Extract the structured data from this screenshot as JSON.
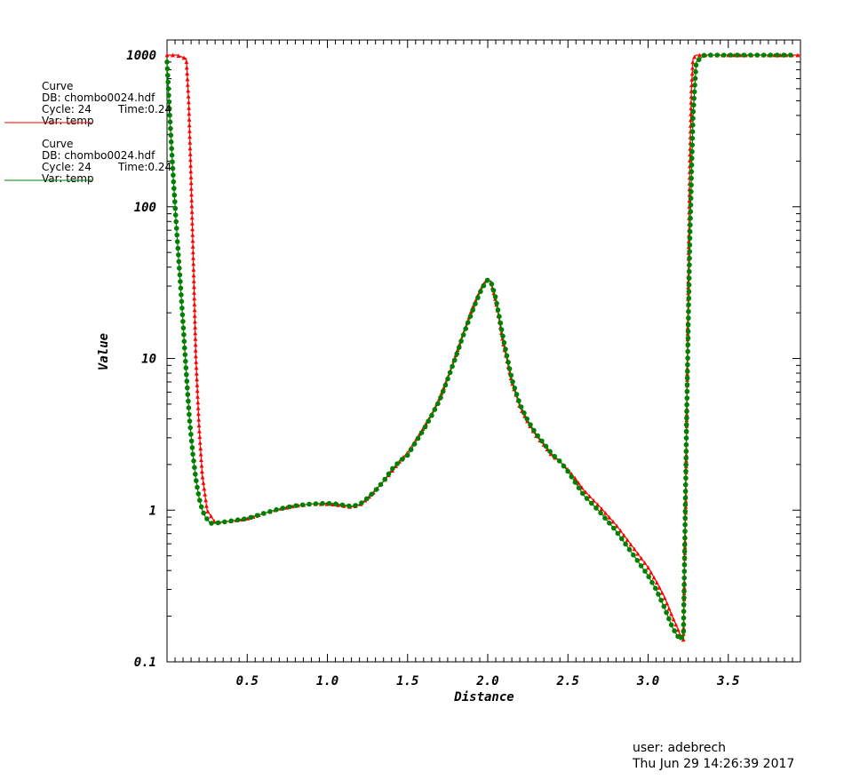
{
  "chart_data": {
    "type": "line",
    "xlabel": "Distance",
    "ylabel": "Value",
    "xlim": [
      0.0,
      3.95
    ],
    "ylim": [
      0.1,
      1000
    ],
    "yscale": "log",
    "x_ticks": [
      "0.5",
      "1.0",
      "1.5",
      "2.0",
      "2.5",
      "3.0",
      "3.5"
    ],
    "y_ticks": [
      "0.1",
      "1",
      "10",
      "100",
      "1000"
    ],
    "grid": false,
    "legend_position": "top-left",
    "series": [
      {
        "color": "#ff0000",
        "marker": "triangle",
        "legend": {
          "line1": "Curve",
          "line2": "DB: chombo0024.hdf",
          "line3_a": "Cycle: 24",
          "line3_b": "Time:0.24",
          "line4": "Var: temp"
        },
        "x": [
          0.0,
          0.06,
          0.12,
          0.135,
          0.15,
          0.165,
          0.18,
          0.2,
          0.22,
          0.25,
          0.3,
          0.4,
          0.5,
          0.6,
          0.7,
          0.8,
          0.9,
          1.0,
          1.05,
          1.1,
          1.15,
          1.2,
          1.25,
          1.3,
          1.35,
          1.4,
          1.45,
          1.5,
          1.55,
          1.6,
          1.65,
          1.7,
          1.75,
          1.8,
          1.85,
          1.9,
          1.95,
          1.98,
          2.0,
          2.02,
          2.05,
          2.1,
          2.15,
          2.2,
          2.25,
          2.3,
          2.35,
          2.4,
          2.45,
          2.5,
          2.55,
          2.6,
          2.7,
          2.8,
          2.9,
          3.0,
          3.05,
          3.1,
          3.15,
          3.18,
          3.2,
          3.22,
          3.235,
          3.25,
          3.26,
          3.27,
          3.28,
          3.3,
          3.4,
          3.6,
          3.8,
          3.95
        ],
        "y": [
          1000,
          1000,
          950,
          500,
          150,
          40,
          10,
          3.5,
          1.7,
          1.0,
          0.83,
          0.85,
          0.88,
          0.95,
          1.02,
          1.07,
          1.1,
          1.1,
          1.09,
          1.07,
          1.05,
          1.08,
          1.2,
          1.35,
          1.55,
          1.8,
          2.1,
          2.4,
          2.9,
          3.5,
          4.3,
          5.5,
          7.5,
          10.5,
          15,
          21,
          28,
          32,
          33,
          32,
          24,
          12,
          7,
          4.8,
          3.8,
          3.1,
          2.7,
          2.3,
          2.1,
          1.85,
          1.6,
          1.35,
          1.05,
          0.8,
          0.58,
          0.42,
          0.34,
          0.27,
          0.2,
          0.17,
          0.15,
          0.14,
          1.2,
          30,
          200,
          600,
          950,
          1000,
          1000,
          1000,
          1000,
          1000
        ]
      },
      {
        "color": "#008000",
        "marker": "circle",
        "legend": {
          "line1": "Curve",
          "line2": "DB: chombo0024.hdf",
          "line3_a": "Cycle: 24",
          "line3_b": "Time:0.24",
          "line4": "Var: temp"
        },
        "x": [
          0.0,
          0.02,
          0.04,
          0.06,
          0.08,
          0.1,
          0.12,
          0.14,
          0.16,
          0.18,
          0.2,
          0.22,
          0.24,
          0.27,
          0.3,
          0.4,
          0.5,
          0.6,
          0.7,
          0.8,
          0.9,
          1.0,
          1.05,
          1.1,
          1.15,
          1.2,
          1.25,
          1.3,
          1.35,
          1.4,
          1.45,
          1.5,
          1.55,
          1.6,
          1.65,
          1.7,
          1.75,
          1.8,
          1.85,
          1.9,
          1.95,
          1.98,
          2.0,
          2.02,
          2.05,
          2.1,
          2.15,
          2.2,
          2.25,
          2.3,
          2.35,
          2.4,
          2.45,
          2.5,
          2.55,
          2.6,
          2.7,
          2.8,
          2.9,
          3.0,
          3.05,
          3.1,
          3.15,
          3.18,
          3.2,
          3.22,
          3.24,
          3.26,
          3.28,
          3.3,
          3.35,
          3.4,
          3.5,
          3.6,
          3.7,
          3.8,
          3.9
        ],
        "y": [
          900,
          350,
          150,
          70,
          35,
          17,
          8,
          4,
          2.4,
          1.6,
          1.2,
          1.0,
          0.9,
          0.82,
          0.82,
          0.85,
          0.88,
          0.95,
          1.02,
          1.07,
          1.1,
          1.11,
          1.1,
          1.08,
          1.06,
          1.09,
          1.2,
          1.35,
          1.55,
          1.85,
          2.1,
          2.3,
          2.8,
          3.4,
          4.2,
          5.3,
          7.3,
          10.2,
          14.5,
          20,
          27,
          31,
          33,
          32,
          25,
          13,
          7.3,
          5.0,
          3.9,
          3.2,
          2.75,
          2.35,
          2.1,
          1.8,
          1.5,
          1.25,
          0.97,
          0.73,
          0.52,
          0.37,
          0.3,
          0.23,
          0.17,
          0.15,
          0.14,
          0.15,
          4,
          60,
          400,
          900,
          1000,
          1000,
          1000,
          1000,
          1000,
          1000,
          1000
        ]
      }
    ]
  },
  "footer": {
    "user": "user: adebrech",
    "timestamp": "Thu Jun 29 14:26:39 2017"
  }
}
